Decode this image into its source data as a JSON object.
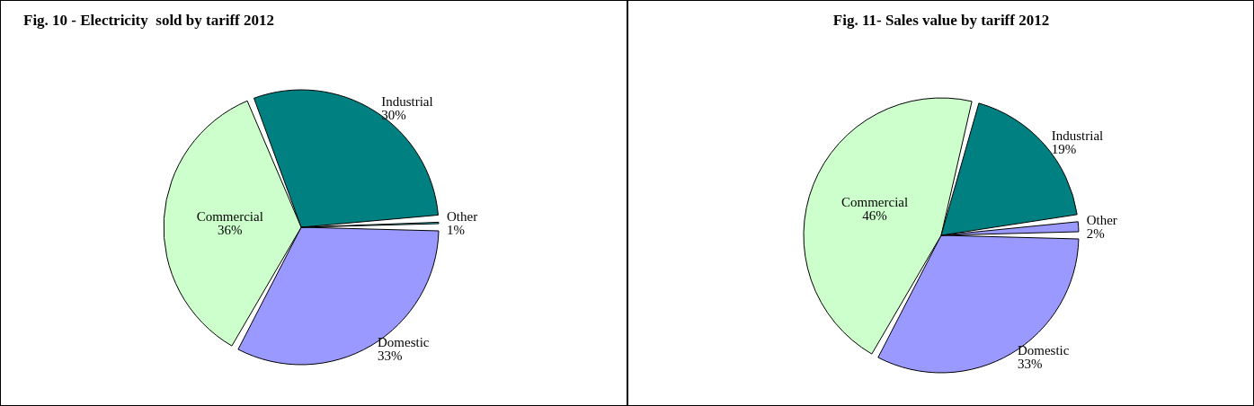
{
  "chart_data": [
    {
      "type": "pie",
      "title": "Fig. 10 - Electricity  sold by tariff 2012",
      "categories": [
        "Domestic",
        "Commercial",
        "Industrial",
        "Other"
      ],
      "values": [
        33,
        36,
        30,
        1
      ],
      "colors": [
        "#9999ff",
        "#ccffcc",
        "#008080",
        "#33cccc"
      ],
      "value_labels": [
        "33%",
        "36%",
        "30%",
        "1%"
      ],
      "legend": false
    },
    {
      "type": "pie",
      "title": "Fig. 11- Sales value by tariff 2012",
      "categories": [
        "Domestic",
        "Commercial",
        "Industrial",
        "Other"
      ],
      "values": [
        33,
        46,
        19,
        2
      ],
      "colors": [
        "#9999ff",
        "#ccffcc",
        "#008080",
        "#9999ff"
      ],
      "value_labels": [
        "33%",
        "46%",
        "19%",
        "2%"
      ],
      "legend": false
    }
  ]
}
